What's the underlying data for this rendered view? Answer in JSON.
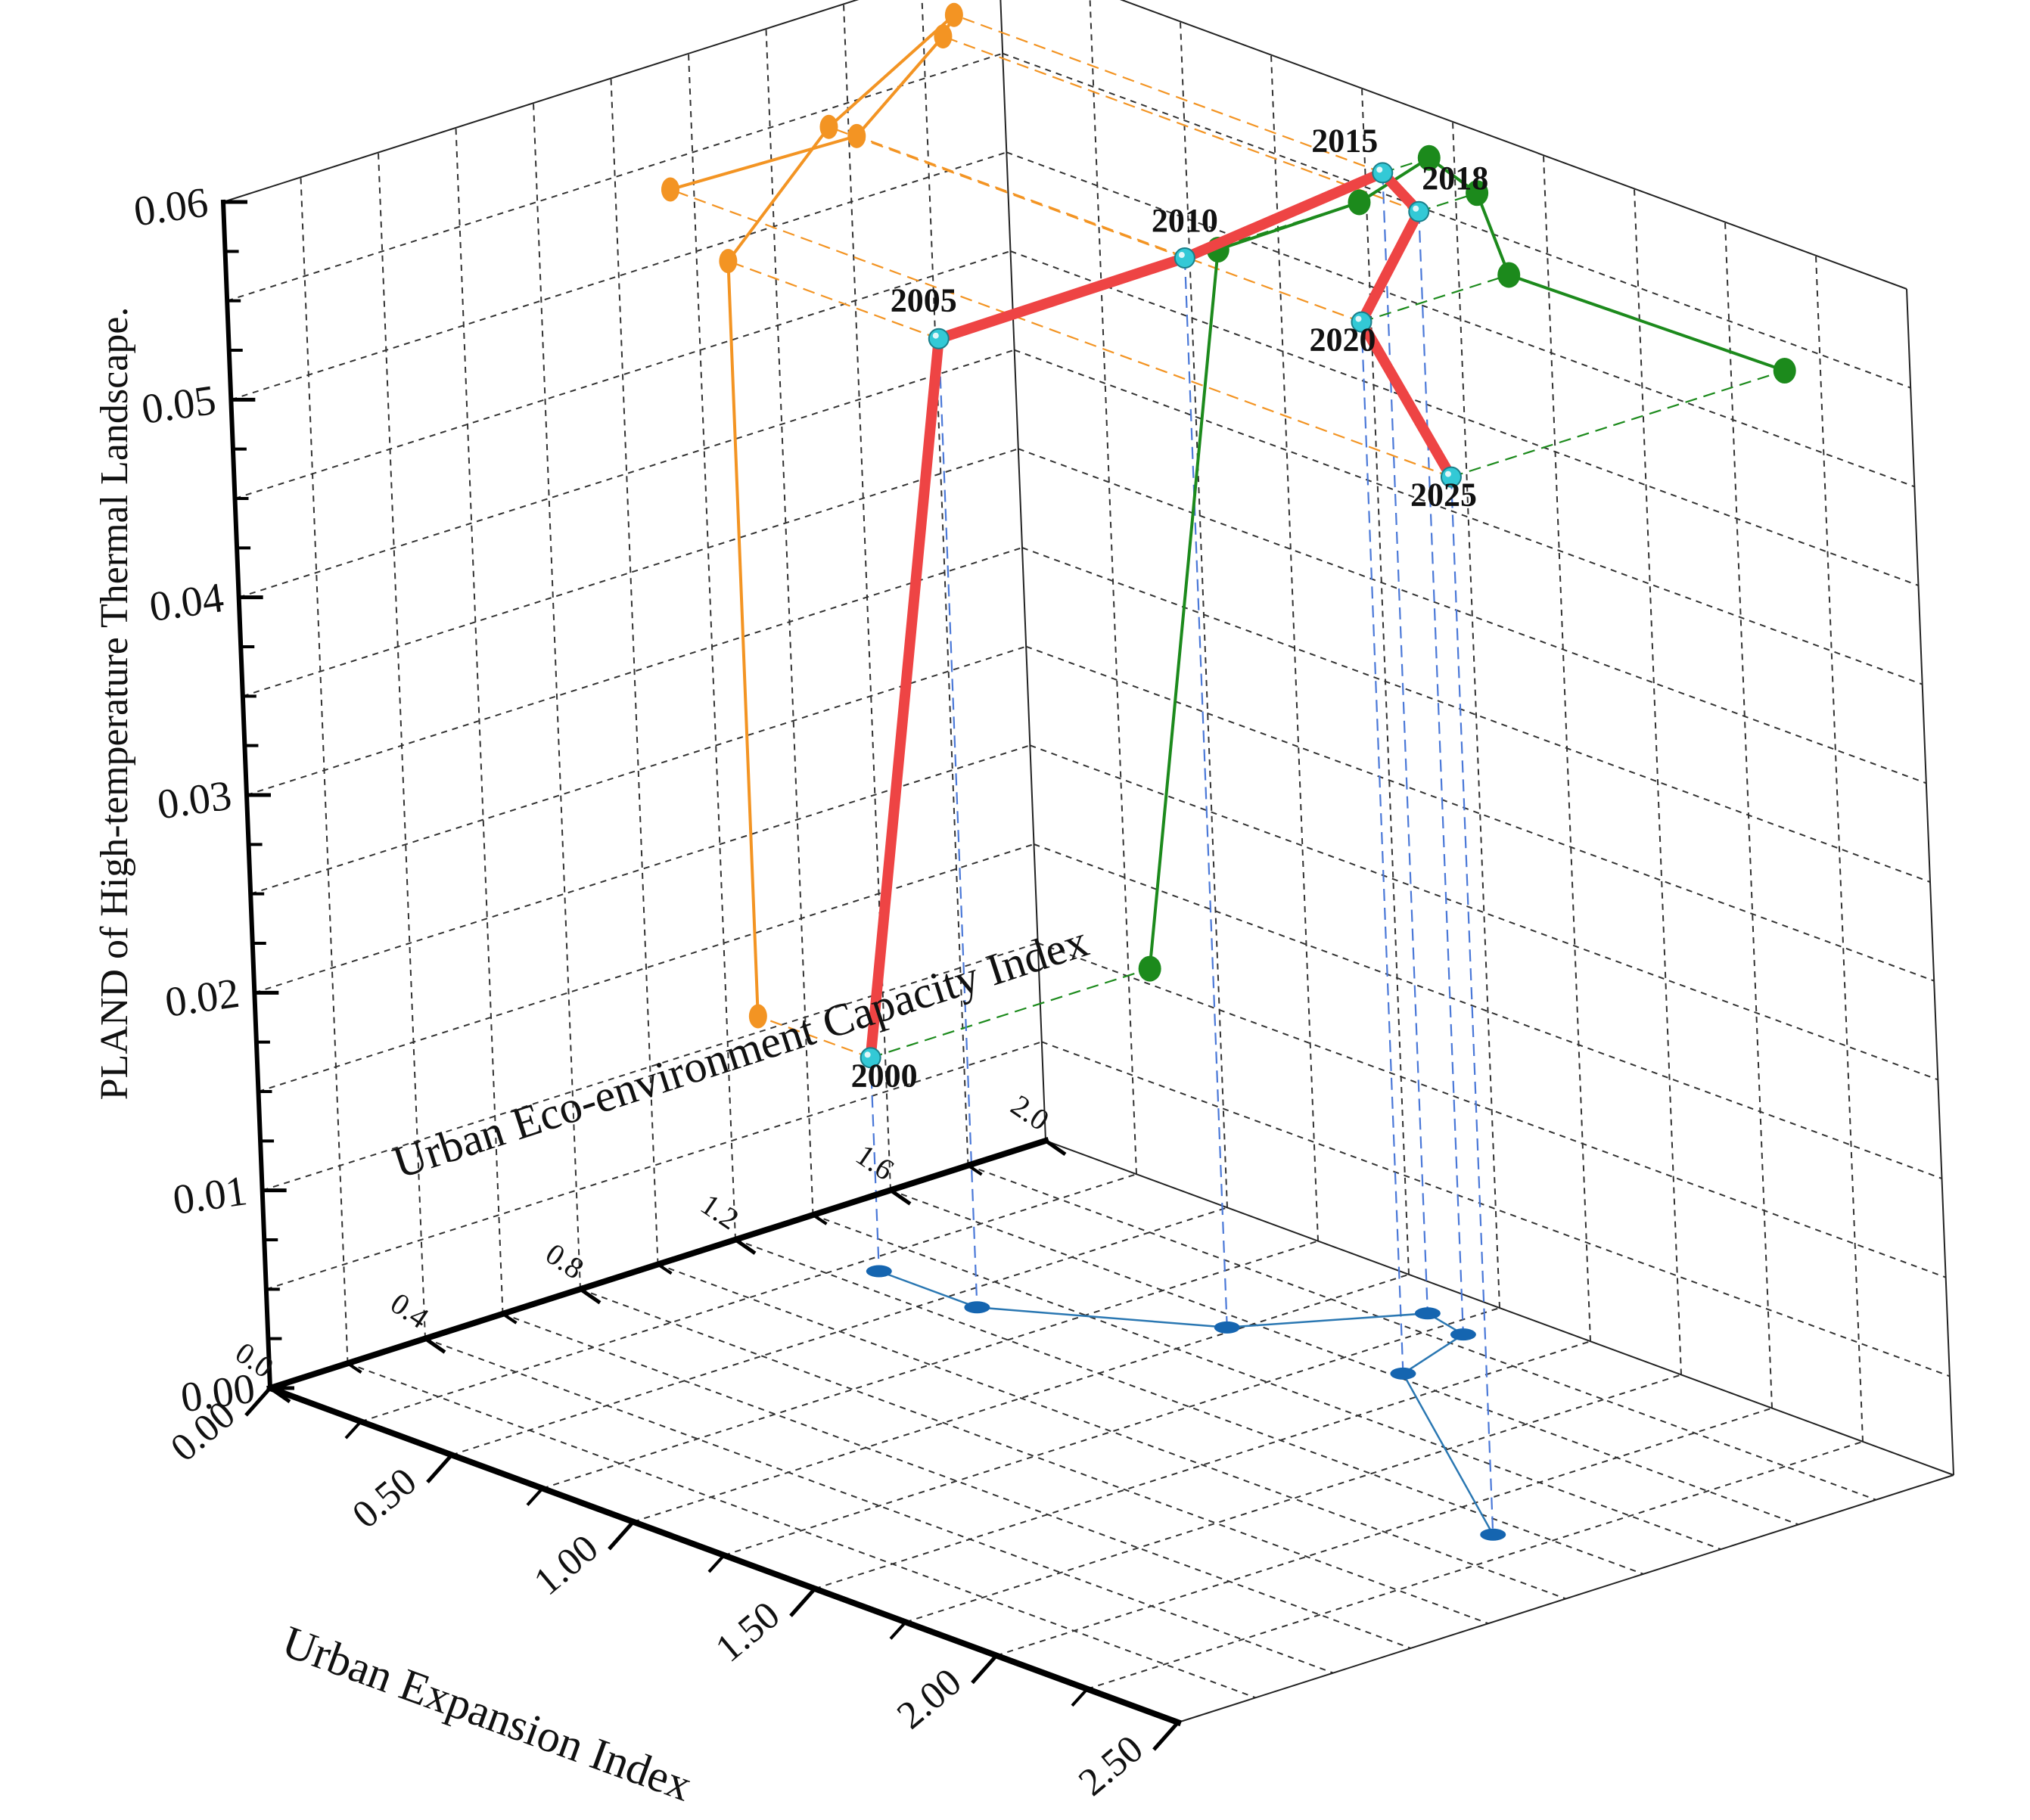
{
  "chart_data": {
    "type": "line3d",
    "axes": {
      "x": {
        "label": "Urban Expansion Index",
        "ticks": [
          "0.00",
          "0.50",
          "1.00",
          "1.50",
          "2.00",
          "2.50"
        ],
        "range": [
          0,
          2.5
        ]
      },
      "y": {
        "label": "Urban Eco-environment Capacity Index",
        "ticks": [
          "0.0",
          "0.4",
          "0.8",
          "1.2",
          "1.6",
          "2.0"
        ],
        "range": [
          0,
          2.0
        ]
      },
      "z": {
        "label": "PLAND of High-temperature Thermal Landscape.",
        "ticks": [
          "0.00",
          "0.01",
          "0.02",
          "0.03",
          "0.04",
          "0.05",
          "0.06"
        ],
        "range": [
          0,
          0.06
        ]
      }
    },
    "grid": true,
    "colors": {
      "main": "#ee4444",
      "marker": "#33c9d6",
      "xz_projection": "#f39423",
      "yz_projection": "#1c8a1c",
      "xy_projection": "#2a77b2",
      "drop_lines": "#4a78d8"
    },
    "series": [
      {
        "years": [
          "2000",
          "2005",
          "2010",
          "2015",
          "2018",
          "2020",
          "2025"
        ],
        "x": [
          0.31,
          0.58,
          0.98,
          1.18,
          1.31,
          1.39,
          2.15
        ],
        "y": [
          1.28,
          1.28,
          1.55,
          1.88,
          1.85,
          1.62,
          1.14
        ],
        "z": [
          0.0108,
          0.049,
          0.0541,
          0.0577,
          0.0568,
          0.0532,
          0.0535
        ]
      }
    ]
  }
}
